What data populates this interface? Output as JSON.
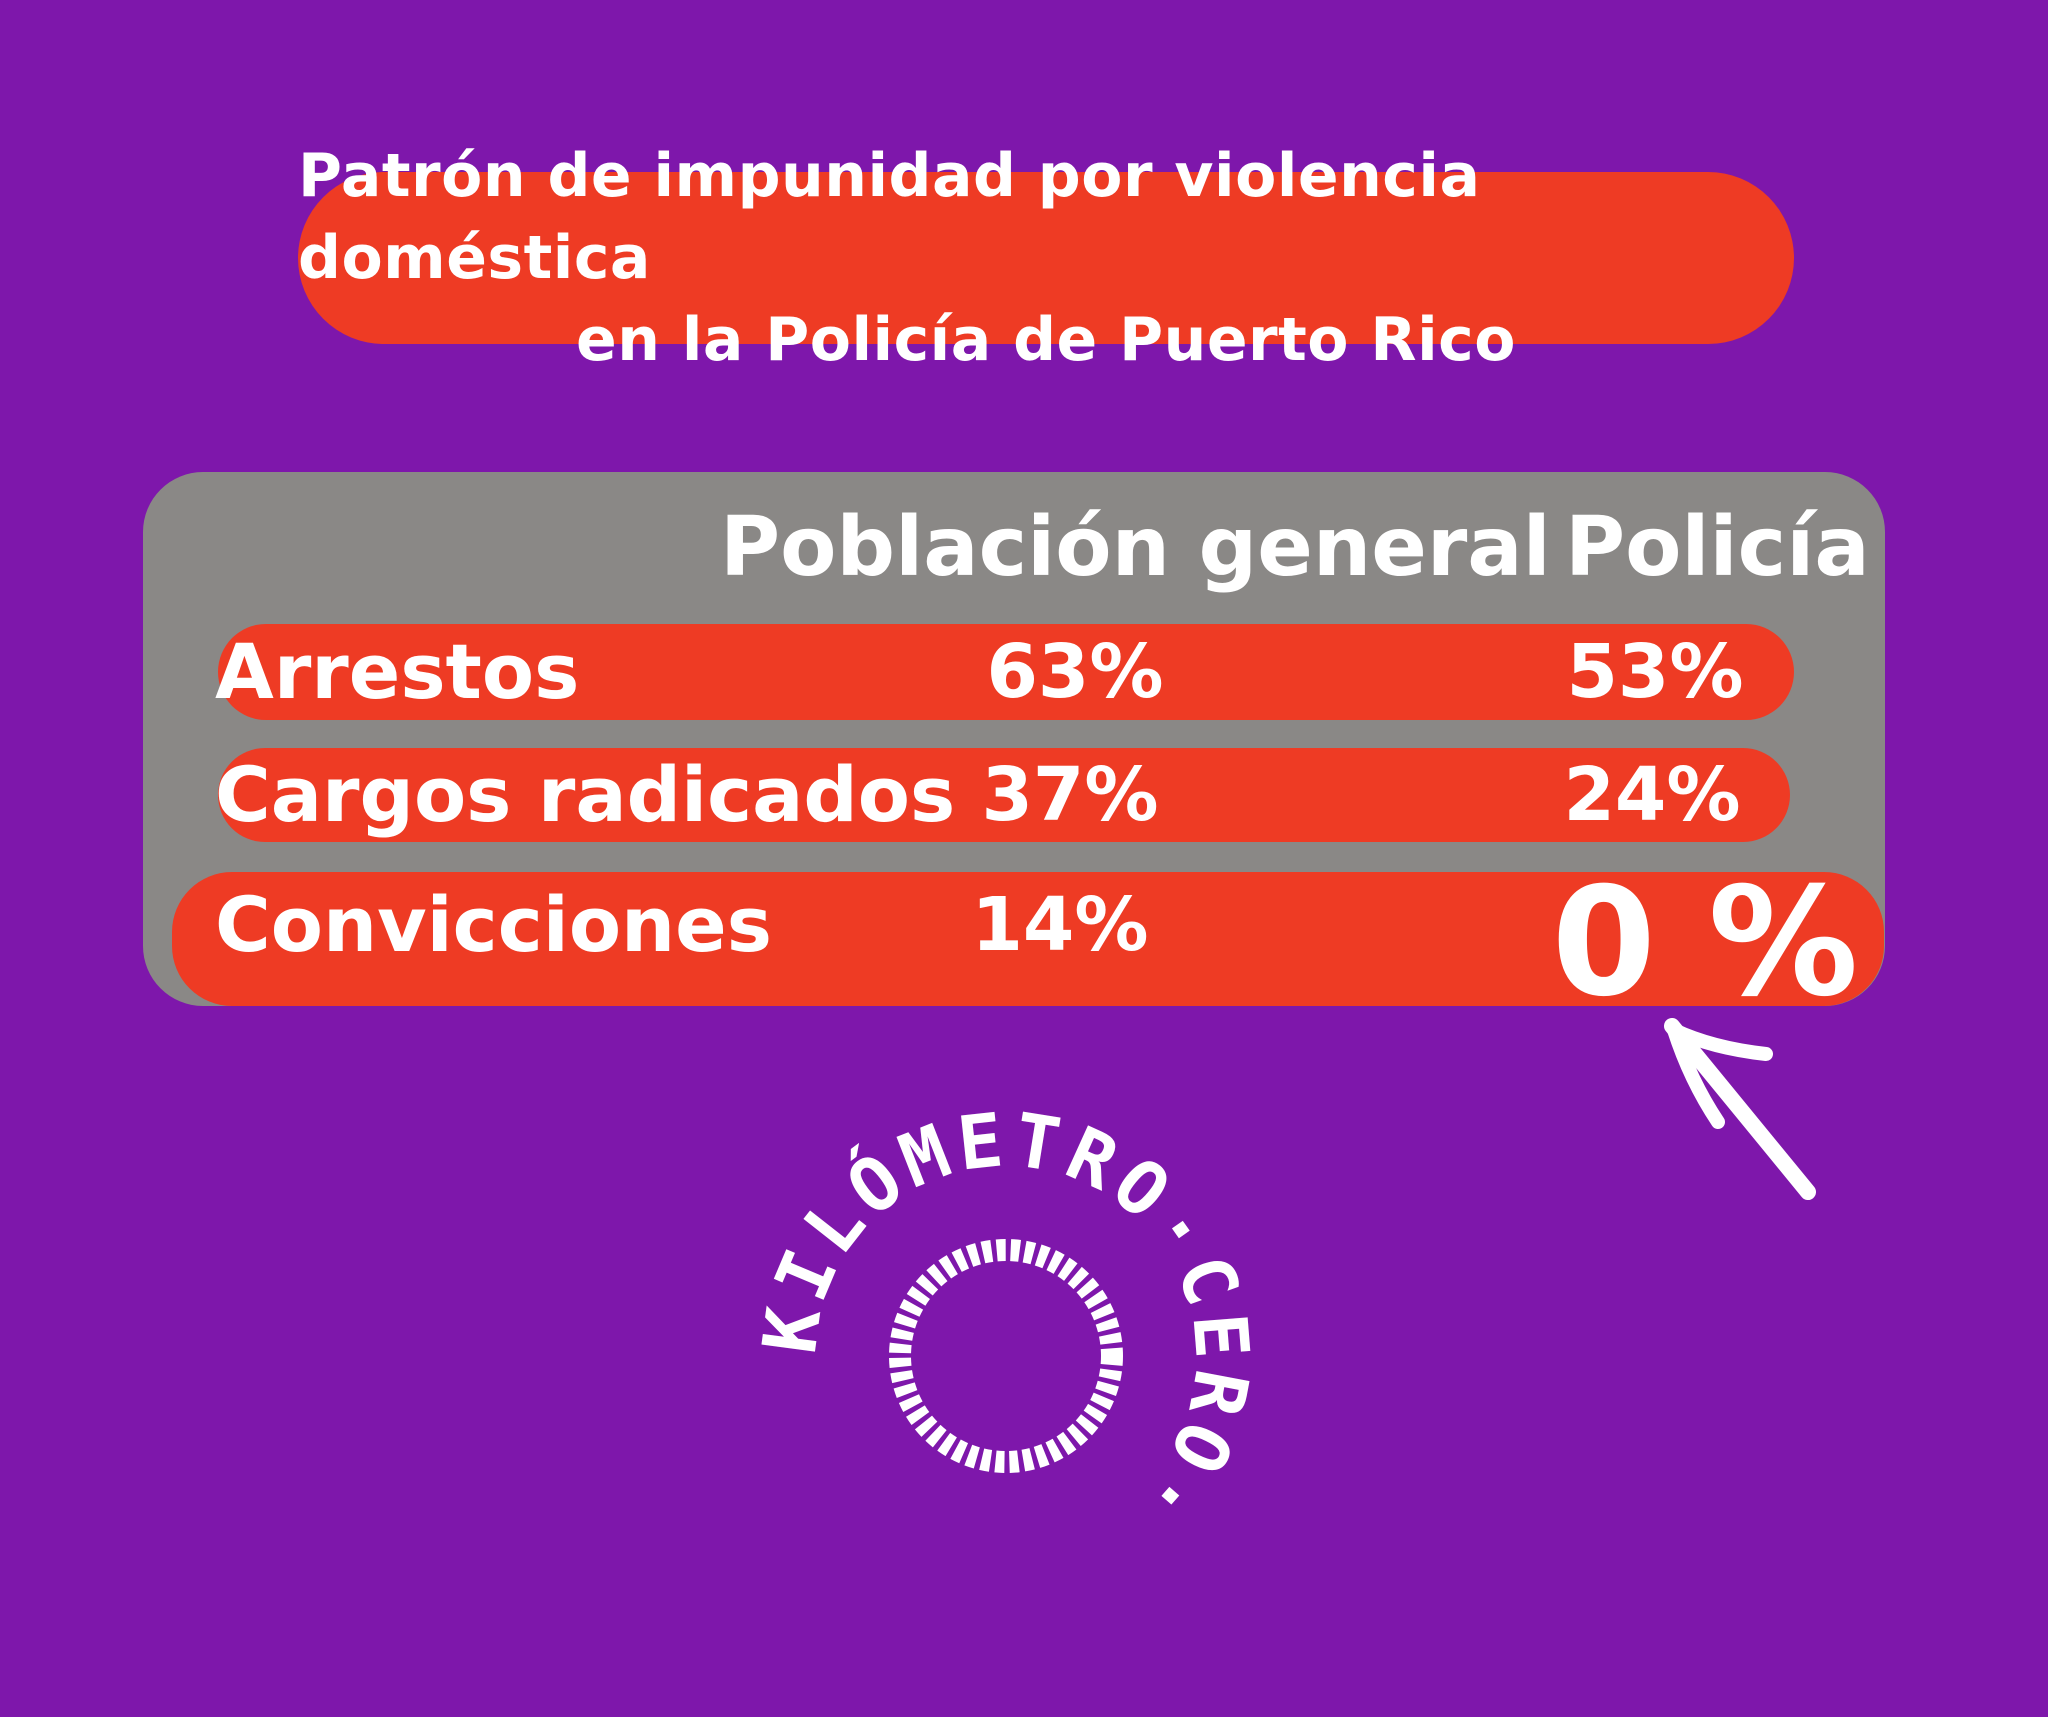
{
  "title": {
    "line1": "Patrón de impunidad por violencia doméstica",
    "line2": "en la Policía de Puerto Rico"
  },
  "chart_data": {
    "type": "table",
    "columns": [
      "Población general",
      "Policía"
    ],
    "rows": [
      {
        "label": "Arrestos",
        "general": "63%",
        "policia": "53%"
      },
      {
        "label": "Cargos radicados",
        "general": "37%",
        "policia": "24%"
      },
      {
        "label": "Convicciones",
        "general": "14%",
        "policia": "0 %"
      }
    ],
    "values_general": [
      63,
      37,
      14
    ],
    "values_policia": [
      53,
      24,
      0
    ]
  },
  "logo": {
    "text": "KILÓMETRO·CERO·"
  },
  "colors": {
    "background": "#7e17ab",
    "accent": "#ee3b24",
    "panel": "#8a8886",
    "text": "#ffffff"
  },
  "icons": {
    "arrow": "hand-drawn-arrow-icon",
    "logo": "kilometro-cero-logo"
  }
}
